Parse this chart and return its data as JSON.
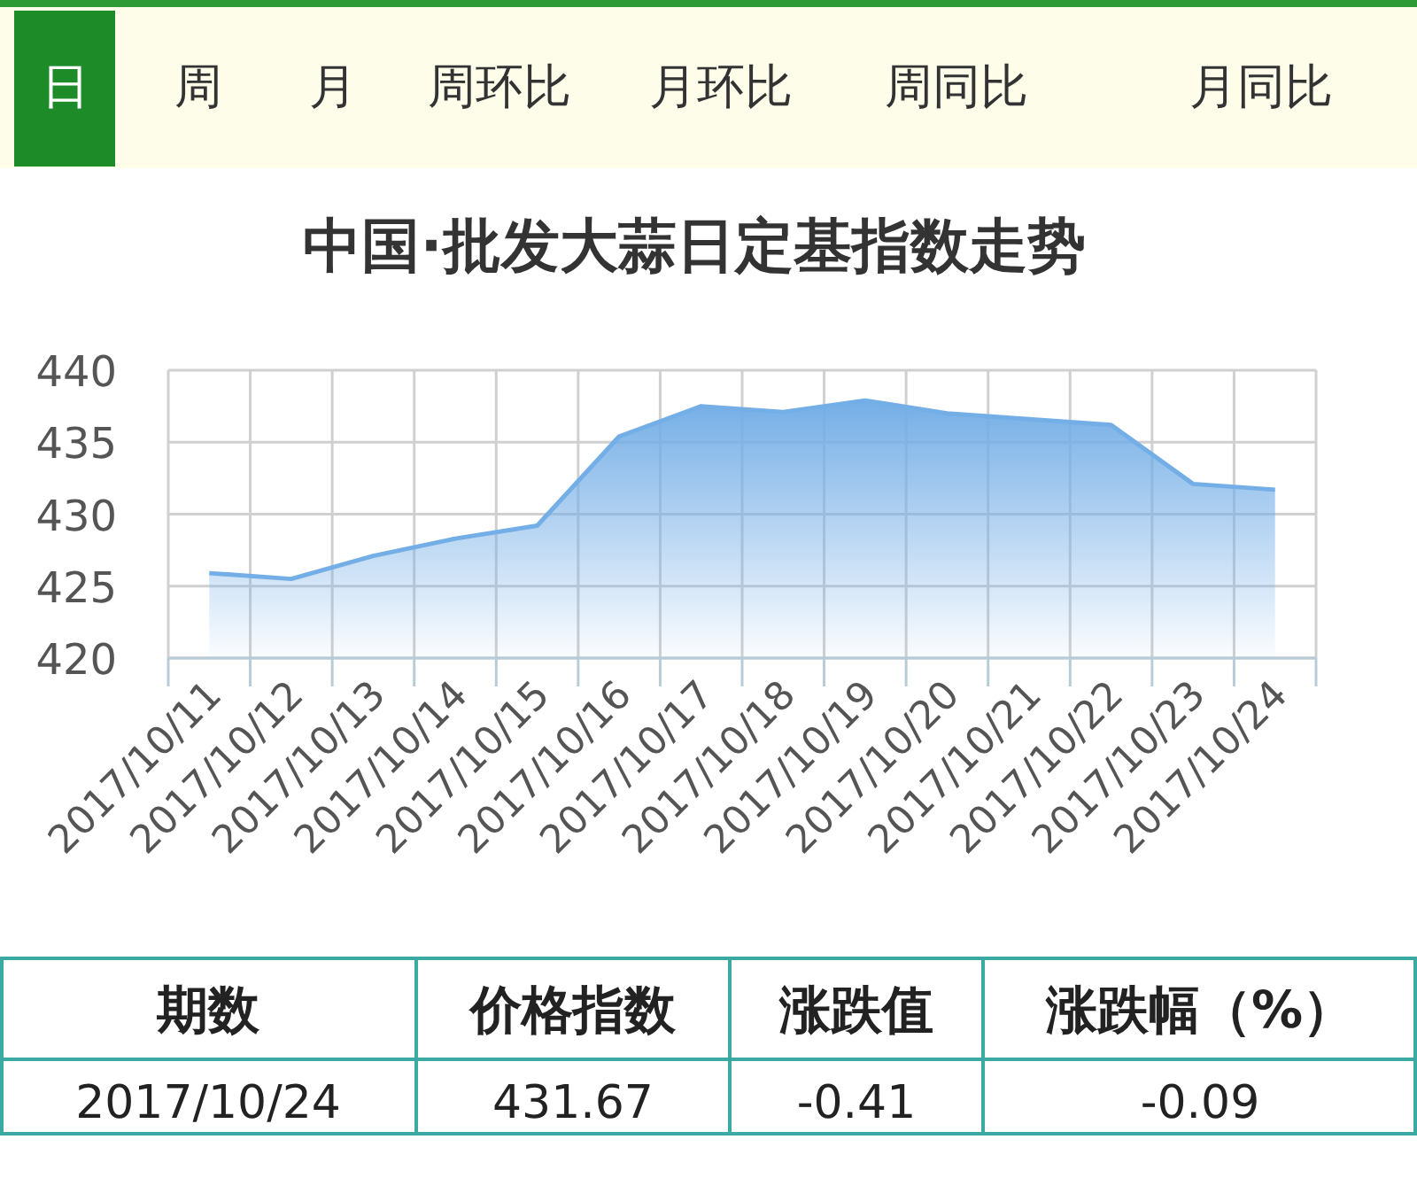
{
  "chart_data": {
    "type": "area",
    "title": "中国·批发大蒜日定基指数走势",
    "categories": [
      "2017/10/11",
      "2017/10/12",
      "2017/10/13",
      "2017/10/14",
      "2017/10/15",
      "2017/10/16",
      "2017/10/17",
      "2017/10/18",
      "2017/10/19",
      "2017/10/20",
      "2017/10/21",
      "2017/10/22",
      "2017/10/23",
      "2017/10/24"
    ],
    "series": [
      {
        "color": "#74aee6",
        "values": [
          425.9,
          425.5,
          427.1,
          428.3,
          429.2,
          435.4,
          437.5,
          437.1,
          437.9,
          437.0,
          436.6,
          436.2,
          432.1,
          431.7
        ]
      }
    ],
    "ylim": [
      420,
      440
    ],
    "yticks": [
      420,
      425,
      430,
      435,
      440
    ],
    "grid": true,
    "marker": "none",
    "line_style": "solid",
    "annotations": [
      "日",
      "周",
      "月",
      "周环比",
      "月环比",
      "周同比",
      "月同比",
      "期数",
      "价格指数",
      "涨跌值",
      "涨跌幅（%）",
      "2017/10/24",
      "431.67",
      "-0.41",
      "-0.09"
    ]
  }
}
